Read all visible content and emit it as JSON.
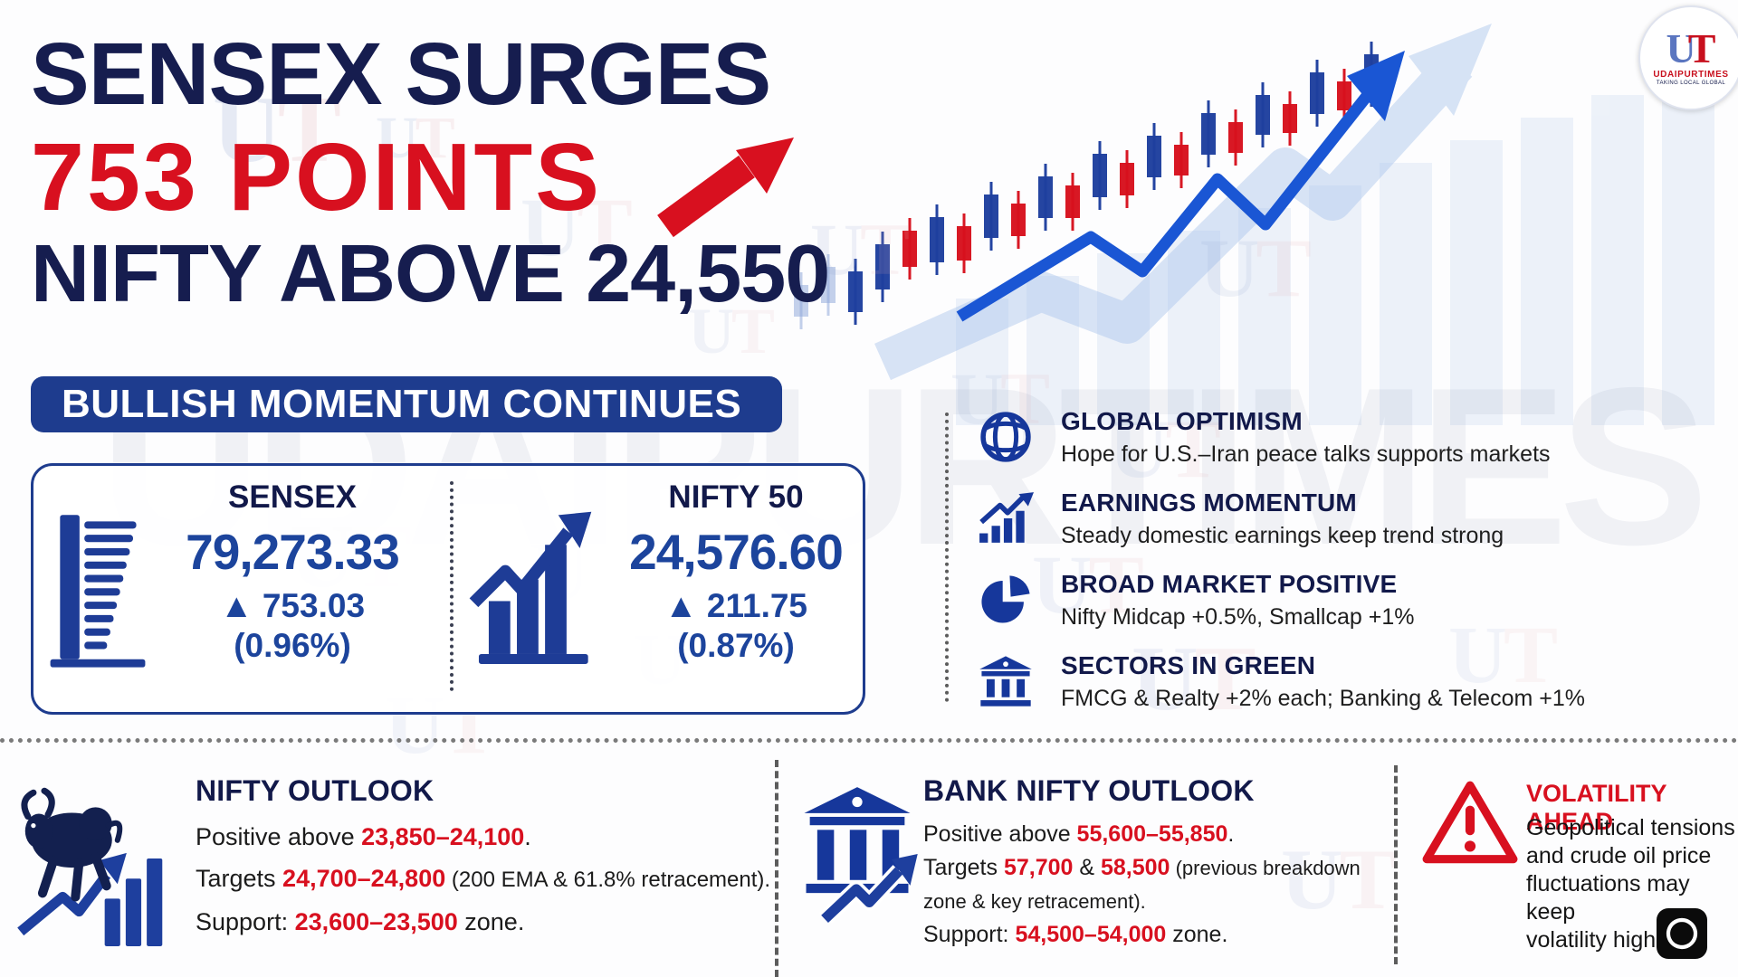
{
  "headline": {
    "line1": "SENSEX SURGES",
    "line2": "753 POINTS",
    "line3": "NIFTY ABOVE 24,550"
  },
  "banner": {
    "label": "BULLISH MOMENTUM CONTINUES"
  },
  "indices": [
    {
      "name": "SENSEX",
      "value": "79,273.33",
      "arrow": "▲",
      "change": "753.03",
      "pct": "(0.96%)"
    },
    {
      "name": "NIFTY 50",
      "value": "24,576.60",
      "arrow": "▲",
      "change": "211.75",
      "pct": "(0.87%)"
    }
  ],
  "drivers": [
    {
      "icon": "globe-icon",
      "title": "GLOBAL OPTIMISM",
      "desc": "Hope for U.S.–Iran peace talks supports markets"
    },
    {
      "icon": "earnings-growth-icon",
      "title": "EARNINGS MOMENTUM",
      "desc": "Steady domestic earnings keep trend strong"
    },
    {
      "icon": "pie-chart-icon",
      "title": "BROAD MARKET POSITIVE",
      "desc": "Nifty Midcap +0.5%, Smallcap +1%"
    },
    {
      "icon": "bank-icon",
      "title": "SECTORS IN GREEN",
      "desc": "FMCG & Realty +2% each; Banking & Telecom +1%"
    }
  ],
  "nifty_outlook": {
    "title": "NIFTY OUTLOOK",
    "pos_label": "Positive above ",
    "pos_range": "23,850–24,100",
    "pos_end": ".",
    "tgt_label": "Targets ",
    "tgt_range": "24,700–24,800",
    "tgt_note": " (200 EMA & 61.8% retracement).",
    "sup_label": "Support: ",
    "sup_range": "23,600–23,500",
    "sup_end": " zone."
  },
  "bank_outlook": {
    "title": "BANK NIFTY OUTLOOK",
    "pos_label": "Positive above ",
    "pos_range": "55,600–55,850",
    "pos_end": ".",
    "tgt_label": "Targets ",
    "tgt_first": "57,700",
    "tgt_sep": " & ",
    "tgt_second": "58,500",
    "tgt_note": " (previous breakdown",
    "tgt_note2": "zone & key retracement).",
    "sup_label": "Support: ",
    "sup_range": "54,500–54,000",
    "sup_end": " zone."
  },
  "warning": {
    "title": "VOLATILITY AHEAD",
    "line1": "Geopolitical tensions",
    "line2": "and crude oil price",
    "line3": "fluctuations may keep",
    "line4": "volatility high."
  },
  "brand": {
    "monogram_u": "U",
    "monogram_t": "T",
    "name": "UDAIPURTIMES",
    "tagline": "TAKING LOCAL GLOBAL"
  },
  "watermark": {
    "big": "UDAIPURTIMES",
    "u": "U",
    "t": "T"
  },
  "colors": {
    "navy": "#161d4f",
    "red": "#d8101f",
    "banner_blue": "#1e3c8e",
    "value_blue": "#1c449c",
    "candle_blue": "#1e3f9e",
    "candle_red": "#d7111d",
    "candle_pale": "#93abdb",
    "trend_blue": "#1a56d4"
  },
  "chart_decor": {
    "candles": [
      [
        885,
        315,
        35,
        "p"
      ],
      [
        915,
        295,
        40,
        "p"
      ],
      [
        945,
        300,
        45,
        "b"
      ],
      [
        975,
        270,
        50,
        "b"
      ],
      [
        1005,
        255,
        40,
        "r"
      ],
      [
        1035,
        240,
        50,
        "b"
      ],
      [
        1065,
        250,
        38,
        "r"
      ],
      [
        1095,
        215,
        48,
        "b"
      ],
      [
        1125,
        225,
        36,
        "r"
      ],
      [
        1155,
        195,
        46,
        "b"
      ],
      [
        1185,
        205,
        36,
        "r"
      ],
      [
        1215,
        170,
        48,
        "b"
      ],
      [
        1245,
        180,
        36,
        "r"
      ],
      [
        1275,
        150,
        46,
        "b"
      ],
      [
        1305,
        160,
        34,
        "r"
      ],
      [
        1335,
        125,
        46,
        "b"
      ],
      [
        1365,
        135,
        34,
        "r"
      ],
      [
        1395,
        105,
        44,
        "b"
      ],
      [
        1425,
        115,
        32,
        "r"
      ],
      [
        1455,
        80,
        46,
        "b"
      ],
      [
        1485,
        90,
        32,
        "r"
      ],
      [
        1515,
        60,
        44,
        "b"
      ]
    ],
    "trend": [
      [
        1060,
        350
      ],
      [
        1205,
        262
      ],
      [
        1262,
        300
      ],
      [
        1345,
        198
      ],
      [
        1398,
        248
      ],
      [
        1518,
        96
      ]
    ]
  }
}
